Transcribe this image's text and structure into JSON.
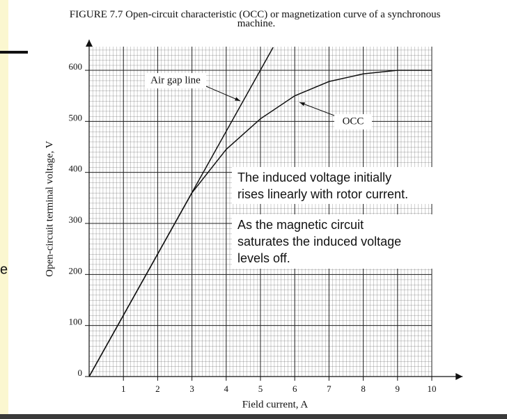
{
  "slide": {
    "side_text": "e"
  },
  "chart_data": {
    "type": "line",
    "title": [
      "FIGURE 7.7 Open-circuit characteristic (OCC) or magnetization curve of a synchronous",
      "machine."
    ],
    "x_label": "Field current, A",
    "y_label": "Open-circuit terminal voltage, V",
    "xlim": [
      0,
      10.9
    ],
    "ylim": [
      0,
      660
    ],
    "xticks": [
      1,
      2,
      3,
      4,
      5,
      6,
      7,
      8,
      9,
      10
    ],
    "yticks": [
      0,
      100,
      200,
      300,
      400,
      500,
      600
    ],
    "grid": true,
    "series": [
      {
        "name": "Air gap line",
        "color": "#111111",
        "x": [
          0,
          5.37
        ],
        "values": [
          0,
          645
        ]
      },
      {
        "name": "OCC",
        "color": "#111111",
        "x": [
          0,
          1,
          2,
          3,
          4,
          5,
          6,
          7,
          8,
          9,
          10
        ],
        "values": [
          0,
          120,
          240,
          360,
          445,
          505,
          550,
          578,
          593,
          600,
          600
        ]
      }
    ],
    "annotations": [
      [
        "The induced voltage initially",
        "rises linearly with rotor current."
      ],
      [
        "As the magnetic circuit",
        "saturates the induced voltage",
        "levels off."
      ]
    ]
  }
}
